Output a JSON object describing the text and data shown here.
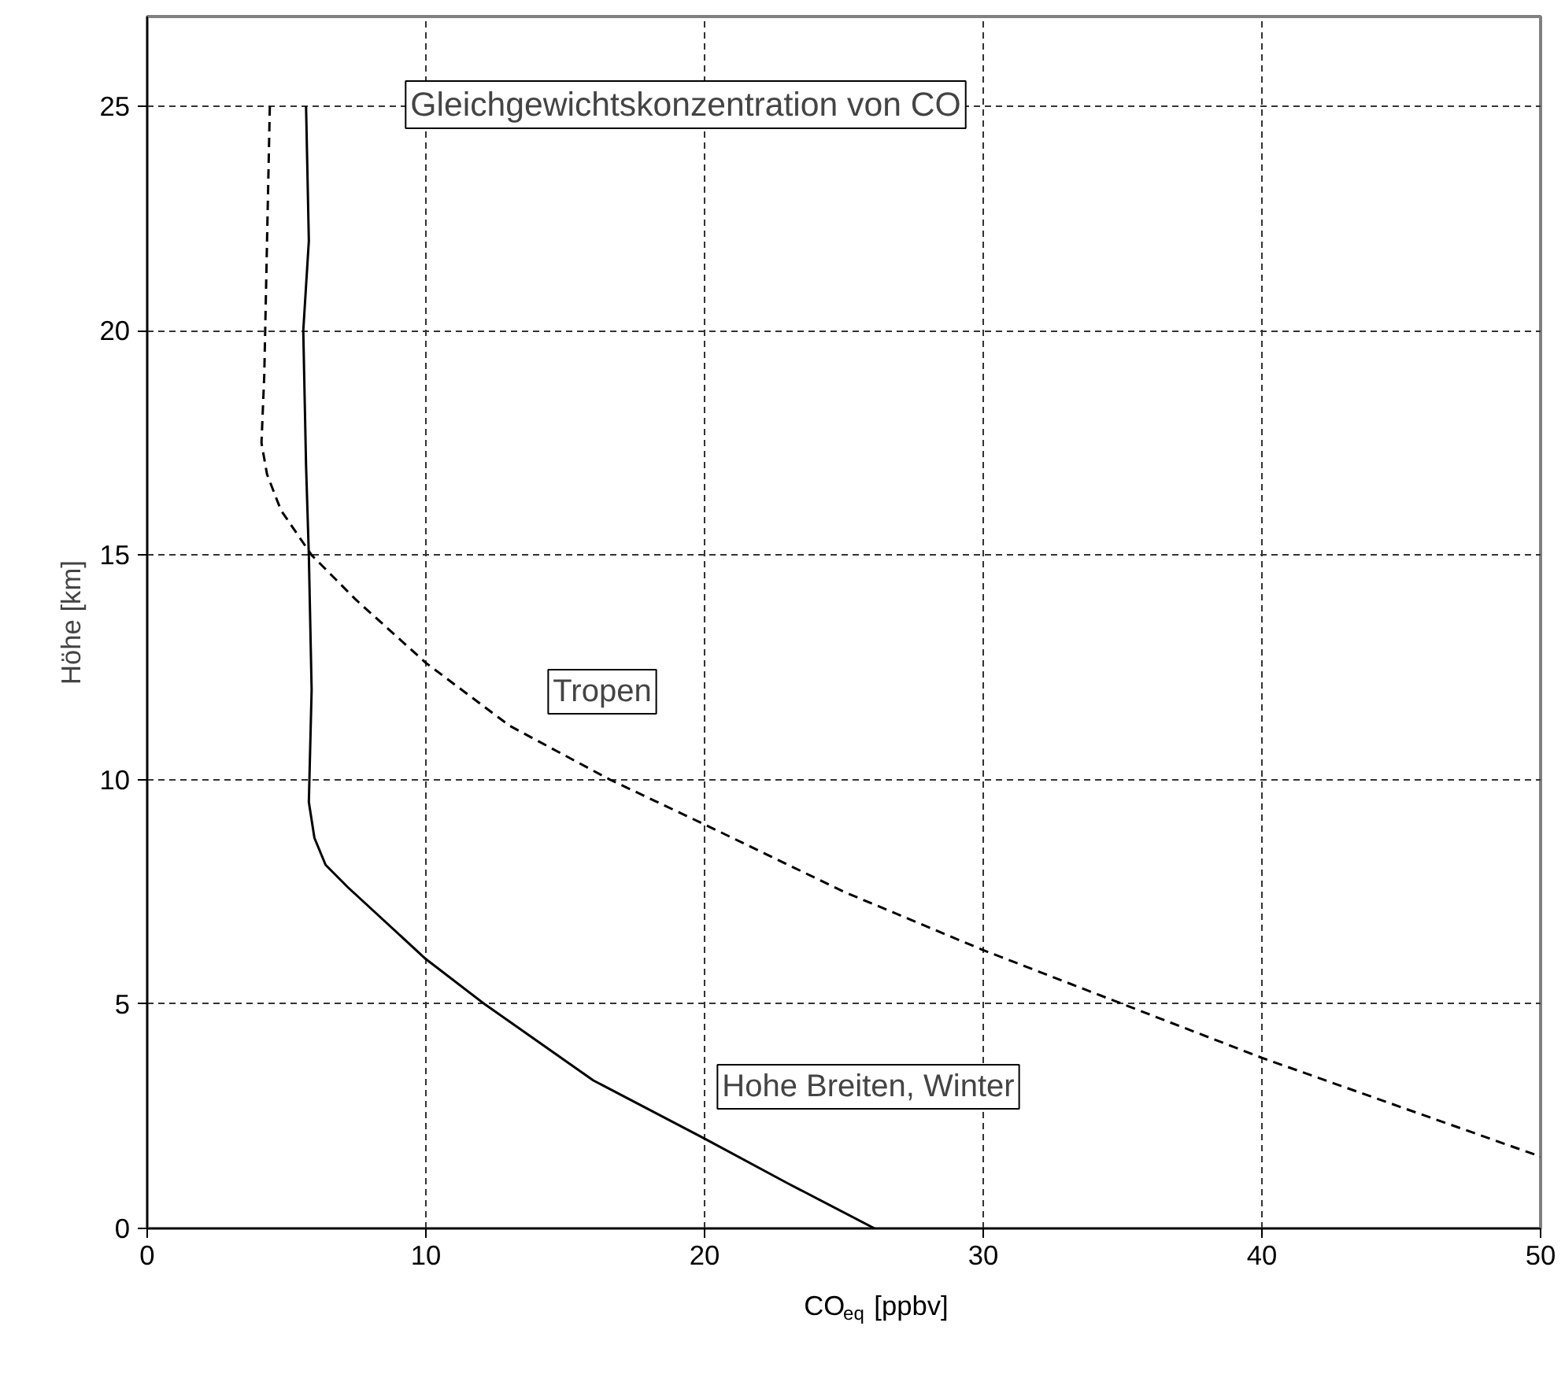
{
  "chart_data": {
    "type": "line",
    "title": "Gleichgewichtskonzentration von CO",
    "xlabel": "CO$_{eq}$ [ppbv]",
    "ylabel": "Höhe [km]",
    "xlim": [
      0,
      50
    ],
    "ylim": [
      0,
      27
    ],
    "xticks": [
      0,
      10,
      20,
      30,
      40,
      50
    ],
    "yticks": [
      0,
      5,
      10,
      15,
      20,
      25
    ],
    "grid": true,
    "series": [
      {
        "color": "#000000",
        "line_style": "dashed",
        "x": [
          4.4,
          4.3,
          4.2,
          4.1,
          4.3,
          4.8,
          5.9,
          7.5,
          10,
          13,
          16.6,
          20,
          25,
          30,
          35,
          40,
          45,
          50
        ],
        "values": [
          25,
          22,
          19,
          17.5,
          16.8,
          16,
          15,
          14,
          12.6,
          11.2,
          10,
          9,
          7.5,
          6.2,
          5,
          3.8,
          2.7,
          1.6
        ]
      },
      {
        "color": "#000000",
        "line_style": "solid",
        "x": [
          5.7,
          5.8,
          5.6,
          5.7,
          5.8,
          5.9,
          5.8,
          6.0,
          6.4,
          7.2,
          10,
          12.1,
          16,
          20,
          23,
          26.1
        ],
        "values": [
          25,
          22,
          20,
          17,
          15,
          12,
          9.5,
          8.7,
          8.1,
          7.6,
          6,
          5,
          3.3,
          2,
          1,
          0
        ]
      }
    ],
    "annotations": [
      "Tropen",
      "Hohe Breiten, Winter"
    ]
  }
}
